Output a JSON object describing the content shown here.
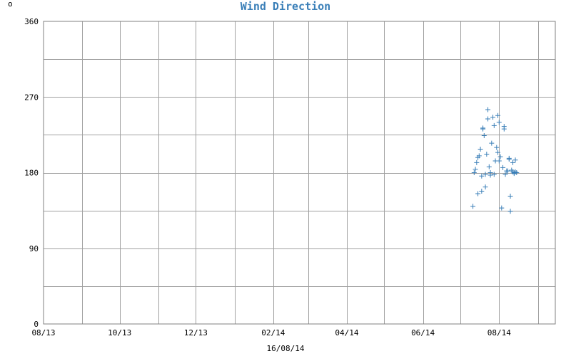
{
  "chart_data": {
    "type": "scatter",
    "title": "Wind Direction",
    "unit": "o",
    "footer": "16/08/14",
    "xticks": [
      "08/13",
      "10/13",
      "12/13",
      "02/14",
      "04/14",
      "06/14",
      "08/14"
    ],
    "x_range": [
      "2013-08-01",
      "2014-09-15"
    ],
    "ylim": [
      0,
      360
    ],
    "yticks": [
      0,
      90,
      180,
      270,
      360
    ],
    "grid": true,
    "series_color": "#3a7fb8",
    "x": [
      "2014-07-11",
      "2014-07-12",
      "2014-07-13",
      "2014-07-14",
      "2014-07-15",
      "2014-07-15",
      "2014-07-16",
      "2014-07-17",
      "2014-07-18",
      "2014-07-18",
      "2014-07-19",
      "2014-07-19",
      "2014-07-20",
      "2014-07-21",
      "2014-07-21",
      "2014-07-22",
      "2014-07-23",
      "2014-07-23",
      "2014-07-24",
      "2014-07-25",
      "2014-07-25",
      "2014-07-26",
      "2014-07-27",
      "2014-07-28",
      "2014-07-28",
      "2014-07-29",
      "2014-07-30",
      "2014-07-31",
      "2014-07-31",
      "2014-08-01",
      "2014-08-01",
      "2014-08-02",
      "2014-08-03",
      "2014-08-04",
      "2014-08-05",
      "2014-08-05",
      "2014-08-06",
      "2014-08-07",
      "2014-08-08",
      "2014-08-09",
      "2014-08-09",
      "2014-08-10",
      "2014-08-10",
      "2014-08-11",
      "2014-08-12",
      "2014-08-12",
      "2014-08-13",
      "2014-08-13",
      "2014-08-14",
      "2014-08-14",
      "2014-08-15"
    ],
    "y": [
      140,
      180,
      184,
      192,
      155,
      198,
      200,
      208,
      158,
      176,
      233,
      232,
      224,
      178,
      163,
      202,
      244,
      255,
      187,
      177,
      180,
      215,
      246,
      236,
      178,
      194,
      210,
      204,
      248,
      240,
      194,
      199,
      138,
      186,
      232,
      235,
      178,
      182,
      182,
      196,
      197,
      152,
      134,
      183,
      192,
      181,
      179,
      180,
      181,
      195,
      180
    ]
  }
}
